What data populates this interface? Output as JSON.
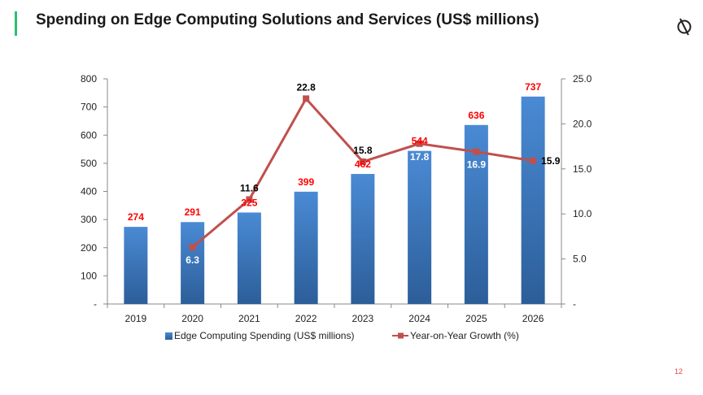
{
  "slide": {
    "title": "Spending on Edge Computing Solutions and Services (US$ millions)",
    "page_number": "12",
    "accent_color": "#2fbf71",
    "logo_icon": "compass-logo-icon"
  },
  "chart_data": {
    "type": "bar",
    "title": "",
    "xlabel": "",
    "ylabel": "",
    "categories": [
      "2019",
      "2020",
      "2021",
      "2022",
      "2023",
      "2024",
      "2025",
      "2026"
    ],
    "series": [
      {
        "name": "Edge Computing Spending (US$ millions)",
        "type": "bar",
        "axis": "left",
        "color": "#3a78c2",
        "values": [
          274,
          291,
          325,
          399,
          462,
          544,
          636,
          737
        ],
        "labels": [
          "274",
          "291",
          "325",
          "399",
          "462",
          "544",
          "636",
          "737"
        ]
      },
      {
        "name": "Year-on-Year Growth (%)",
        "type": "line",
        "axis": "right",
        "color": "#c0504d",
        "values": [
          null,
          6.3,
          11.6,
          22.8,
          15.8,
          17.8,
          16.9,
          15.9
        ],
        "labels": [
          "",
          "6.3",
          "11.6",
          "22.8",
          "15.8",
          "17.8",
          "16.9",
          "15.9"
        ],
        "label_colors": [
          "#000000",
          "#ffffff",
          "#000000",
          "#000000",
          "#000000",
          "#ffffff",
          "#ffffff",
          "#000000"
        ]
      }
    ],
    "ylim_left": [
      0,
      800
    ],
    "yticks_left": [
      "-",
      "100",
      "200",
      "300",
      "400",
      "500",
      "600",
      "700",
      "800"
    ],
    "ylim_right": [
      0,
      25
    ],
    "yticks_right": [
      "-",
      "5.0",
      "10.0",
      "15.0",
      "20.0",
      "25.0"
    ],
    "grid": false,
    "legend_position": "bottom"
  }
}
